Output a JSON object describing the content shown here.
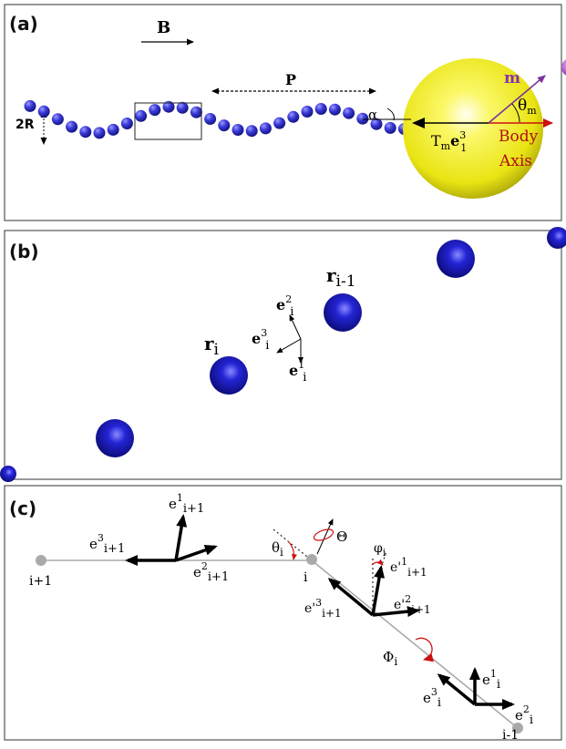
{
  "panels": {
    "a": {
      "label": "(a)",
      "field_label": "B",
      "pitch_label": "P",
      "radius_label": "2R",
      "alpha_label": "α",
      "moment_label": "m",
      "theta_label": "θ",
      "theta_sub": "m",
      "torque_T": "T",
      "torque_T_sub": "m",
      "torque_e": "e",
      "torque_e_sup": "3",
      "torque_e_sub": "1",
      "body_axis_line1": "Body",
      "body_axis_line2": "Axis",
      "colors": {
        "bead": "#3333cc",
        "head": "#f2f020",
        "moment": "#8833aa",
        "body_axis": "#cc1111"
      }
    },
    "b": {
      "label": "(b)",
      "r_i": "r",
      "r_i_sub": "i",
      "r_prev": "r",
      "r_prev_sub": "i-1",
      "e2_base": "e",
      "e2_sup": "2",
      "e2_sub": "i",
      "e3_base": "e",
      "e3_sup": "3",
      "e3_sub": "i",
      "e1_base": "e",
      "e1_sup": "1",
      "e1_sub": "i",
      "colors": {
        "sphere": "#1a1acc"
      }
    },
    "c": {
      "label": "(c)",
      "node_next": "i+1",
      "node_i": "i",
      "node_prev": "i-1",
      "e1_next_base": "e",
      "e1_next_sup": "1",
      "e1_next_sub": "i+1",
      "e3_next_base": "e",
      "e3_next_sup": "3",
      "e3_next_sub": "i+1",
      "e2_next_base": "e",
      "e2_next_sup": "2",
      "e2_next_sub": "i+1",
      "theta_i": "θ",
      "theta_i_sub": "i",
      "Theta": "Θ",
      "phi_i": "φ",
      "phi_i_sub": "i",
      "ep1_base": "e'",
      "ep1_sup": "1",
      "ep1_sub": "i+1",
      "ep2_base": "e'",
      "ep2_sup": "2",
      "ep2_sub": "i+1",
      "ep3_base": "e'",
      "ep3_sup": "3",
      "ep3_sub": "i+1",
      "Phi_i": "Φ",
      "Phi_i_sub": "i",
      "e1_i_base": "e",
      "e1_i_sup": "1",
      "e1_i_sub": "i",
      "e3_i_base": "e",
      "e3_i_sup": "3",
      "e3_i_sub": "i",
      "e2_i_base": "e",
      "e2_i_sup": "2",
      "e2_i_sub": "i",
      "colors": {
        "node": "#aaaaaa",
        "rotation": "#cc1111"
      }
    }
  }
}
